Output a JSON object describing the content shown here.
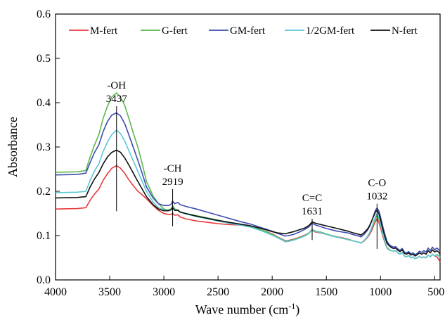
{
  "chart_data": {
    "type": "line",
    "title": "",
    "xlabel": "Wave number (cm",
    "xlabel_sup": "-1",
    "xlabel_end": ")",
    "ylabel": "Absorbance",
    "xlim": [
      4000,
      450
    ],
    "ylim": [
      0.0,
      0.6
    ],
    "x_reversed": true,
    "grid": false,
    "legend_position": "top",
    "xticks": [
      4000,
      3500,
      3000,
      2500,
      2000,
      1500,
      1000,
      500
    ],
    "yticks": [
      0.0,
      0.1,
      0.2,
      0.3,
      0.4,
      0.5,
      0.6
    ],
    "xtick_labels": [
      "4000",
      "3500",
      "3000",
      "2500",
      "2000",
      "1500",
      "1000",
      "500"
    ],
    "ytick_labels": [
      "0.0",
      "0.1",
      "0.2",
      "0.3",
      "0.4",
      "0.5",
      "0.6"
    ],
    "series": [
      {
        "name": "M-fert",
        "color": "#e8393b",
        "x": [
          4000,
          3800,
          3720,
          3680,
          3640,
          3600,
          3560,
          3520,
          3480,
          3437,
          3400,
          3360,
          3320,
          3280,
          3240,
          3200,
          3160,
          3100,
          3050,
          3000,
          2960,
          2935,
          2919,
          2900,
          2870,
          2850,
          2800,
          2700,
          2600,
          2500,
          2400,
          2300,
          2200,
          2100,
          2000,
          1950,
          1900,
          1880,
          1850,
          1800,
          1750,
          1700,
          1660,
          1631,
          1600,
          1550,
          1500,
          1450,
          1400,
          1350,
          1300,
          1250,
          1200,
          1180,
          1150,
          1120,
          1100,
          1080,
          1060,
          1045,
          1032,
          1015,
          1000,
          980,
          960,
          940,
          920,
          900,
          880,
          860,
          840,
          820,
          800,
          780,
          760,
          740,
          720,
          700,
          680,
          660,
          640,
          620,
          600,
          580,
          560,
          540,
          520,
          500,
          480,
          460,
          450
        ],
        "y": [
          0.16,
          0.161,
          0.163,
          0.18,
          0.194,
          0.205,
          0.225,
          0.24,
          0.252,
          0.258,
          0.252,
          0.24,
          0.225,
          0.212,
          0.2,
          0.192,
          0.183,
          0.168,
          0.157,
          0.15,
          0.148,
          0.148,
          0.15,
          0.146,
          0.147,
          0.142,
          0.138,
          0.133,
          0.13,
          0.127,
          0.125,
          0.124,
          0.12,
          0.113,
          0.104,
          0.097,
          0.091,
          0.088,
          0.089,
          0.092,
          0.096,
          0.101,
          0.106,
          0.112,
          0.108,
          0.106,
          0.103,
          0.1,
          0.097,
          0.095,
          0.092,
          0.088,
          0.085,
          0.083,
          0.088,
          0.096,
          0.103,
          0.112,
          0.125,
          0.133,
          0.138,
          0.13,
          0.118,
          0.1,
          0.085,
          0.072,
          0.068,
          0.066,
          0.065,
          0.066,
          0.061,
          0.058,
          0.062,
          0.054,
          0.052,
          0.055,
          0.05,
          0.052,
          0.048,
          0.05,
          0.053,
          0.05,
          0.052,
          0.05,
          0.056,
          0.052,
          0.058,
          0.054,
          0.052,
          0.045,
          0.04
        ]
      },
      {
        "name": "G-fert",
        "color": "#5cb84e",
        "x": [
          4000,
          3800,
          3720,
          3680,
          3640,
          3600,
          3560,
          3520,
          3480,
          3437,
          3400,
          3360,
          3320,
          3280,
          3240,
          3200,
          3160,
          3100,
          3050,
          3000,
          2960,
          2935,
          2919,
          2900,
          2870,
          2850,
          2800,
          2700,
          2600,
          2500,
          2400,
          2300,
          2200,
          2100,
          2000,
          1950,
          1900,
          1880,
          1850,
          1800,
          1750,
          1700,
          1660,
          1631,
          1600,
          1550,
          1500,
          1450,
          1400,
          1350,
          1300,
          1250,
          1200,
          1180,
          1150,
          1120,
          1100,
          1080,
          1060,
          1045,
          1032,
          1015,
          1000,
          980,
          960,
          940,
          920,
          900,
          880,
          860,
          840,
          820,
          800,
          780,
          760,
          740,
          720,
          700,
          680,
          660,
          640,
          620,
          600,
          580,
          560,
          540,
          520,
          500,
          480,
          460,
          450
        ],
        "y": [
          0.243,
          0.244,
          0.247,
          0.278,
          0.305,
          0.328,
          0.365,
          0.393,
          0.413,
          0.422,
          0.413,
          0.393,
          0.362,
          0.33,
          0.3,
          0.262,
          0.222,
          0.19,
          0.172,
          0.16,
          0.158,
          0.16,
          0.168,
          0.16,
          0.158,
          0.154,
          0.15,
          0.145,
          0.14,
          0.135,
          0.13,
          0.126,
          0.121,
          0.113,
          0.103,
          0.096,
          0.09,
          0.087,
          0.088,
          0.091,
          0.095,
          0.1,
          0.106,
          0.114,
          0.11,
          0.108,
          0.104,
          0.1,
          0.097,
          0.094,
          0.091,
          0.088,
          0.085,
          0.083,
          0.089,
          0.098,
          0.106,
          0.117,
          0.13,
          0.14,
          0.145,
          0.137,
          0.123,
          0.104,
          0.087,
          0.073,
          0.068,
          0.066,
          0.065,
          0.066,
          0.061,
          0.058,
          0.062,
          0.054,
          0.052,
          0.055,
          0.05,
          0.052,
          0.048,
          0.05,
          0.053,
          0.05,
          0.052,
          0.05,
          0.056,
          0.052,
          0.058,
          0.054,
          0.057,
          0.055,
          0.053
        ]
      },
      {
        "name": "GM-fert",
        "color": "#3d4cb0",
        "x": [
          4000,
          3800,
          3720,
          3680,
          3640,
          3600,
          3560,
          3520,
          3480,
          3437,
          3400,
          3360,
          3320,
          3280,
          3240,
          3200,
          3160,
          3100,
          3050,
          3000,
          2960,
          2935,
          2919,
          2900,
          2870,
          2850,
          2800,
          2700,
          2600,
          2500,
          2400,
          2300,
          2200,
          2100,
          2000,
          1950,
          1900,
          1880,
          1850,
          1800,
          1750,
          1700,
          1660,
          1631,
          1600,
          1550,
          1500,
          1450,
          1400,
          1350,
          1300,
          1250,
          1200,
          1180,
          1150,
          1120,
          1100,
          1080,
          1060,
          1045,
          1032,
          1015,
          1000,
          980,
          960,
          940,
          920,
          900,
          880,
          860,
          840,
          820,
          800,
          780,
          760,
          740,
          720,
          700,
          680,
          660,
          640,
          620,
          600,
          580,
          560,
          540,
          520,
          500,
          480,
          460,
          450
        ],
        "y": [
          0.237,
          0.238,
          0.241,
          0.265,
          0.288,
          0.305,
          0.335,
          0.358,
          0.372,
          0.377,
          0.37,
          0.352,
          0.325,
          0.298,
          0.27,
          0.24,
          0.21,
          0.185,
          0.172,
          0.168,
          0.168,
          0.17,
          0.178,
          0.172,
          0.175,
          0.17,
          0.166,
          0.16,
          0.153,
          0.146,
          0.139,
          0.132,
          0.126,
          0.118,
          0.11,
          0.105,
          0.101,
          0.099,
          0.1,
          0.103,
          0.108,
          0.114,
          0.12,
          0.128,
          0.124,
          0.12,
          0.116,
          0.113,
          0.11,
          0.108,
          0.106,
          0.102,
          0.099,
          0.097,
          0.103,
          0.112,
          0.121,
          0.133,
          0.148,
          0.158,
          0.162,
          0.156,
          0.142,
          0.122,
          0.103,
          0.087,
          0.08,
          0.076,
          0.074,
          0.075,
          0.07,
          0.067,
          0.071,
          0.063,
          0.061,
          0.064,
          0.059,
          0.061,
          0.057,
          0.06,
          0.065,
          0.062,
          0.066,
          0.063,
          0.072,
          0.066,
          0.074,
          0.068,
          0.072,
          0.068,
          0.064
        ]
      },
      {
        "name": "1/2GM-fert",
        "color": "#5bc8d6",
        "x": [
          4000,
          3800,
          3720,
          3680,
          3640,
          3600,
          3560,
          3520,
          3480,
          3437,
          3400,
          3360,
          3320,
          3280,
          3240,
          3200,
          3160,
          3100,
          3050,
          3000,
          2960,
          2935,
          2919,
          2900,
          2870,
          2850,
          2800,
          2700,
          2600,
          2500,
          2400,
          2300,
          2200,
          2100,
          2000,
          1950,
          1900,
          1880,
          1850,
          1800,
          1750,
          1700,
          1660,
          1631,
          1600,
          1550,
          1500,
          1450,
          1400,
          1350,
          1300,
          1250,
          1200,
          1180,
          1150,
          1120,
          1100,
          1080,
          1060,
          1045,
          1032,
          1015,
          1000,
          980,
          960,
          940,
          920,
          900,
          880,
          860,
          840,
          820,
          800,
          780,
          760,
          740,
          720,
          700,
          680,
          660,
          640,
          620,
          600,
          580,
          560,
          540,
          520,
          500,
          480,
          460,
          450
        ],
        "y": [
          0.197,
          0.198,
          0.2,
          0.225,
          0.246,
          0.262,
          0.29,
          0.312,
          0.328,
          0.338,
          0.33,
          0.313,
          0.29,
          0.268,
          0.245,
          0.222,
          0.2,
          0.176,
          0.163,
          0.158,
          0.157,
          0.158,
          0.165,
          0.158,
          0.157,
          0.153,
          0.149,
          0.143,
          0.138,
          0.133,
          0.128,
          0.124,
          0.119,
          0.111,
          0.101,
          0.095,
          0.089,
          0.086,
          0.087,
          0.09,
          0.094,
          0.099,
          0.105,
          0.113,
          0.109,
          0.107,
          0.103,
          0.099,
          0.096,
          0.094,
          0.091,
          0.088,
          0.085,
          0.083,
          0.089,
          0.098,
          0.107,
          0.119,
          0.133,
          0.144,
          0.15,
          0.141,
          0.126,
          0.106,
          0.088,
          0.074,
          0.069,
          0.066,
          0.065,
          0.066,
          0.061,
          0.058,
          0.062,
          0.054,
          0.052,
          0.055,
          0.05,
          0.052,
          0.048,
          0.05,
          0.053,
          0.05,
          0.052,
          0.05,
          0.056,
          0.052,
          0.058,
          0.054,
          0.056,
          0.053,
          0.05
        ]
      },
      {
        "name": "N-fert",
        "color": "#111111",
        "x": [
          4000,
          3800,
          3720,
          3680,
          3640,
          3600,
          3560,
          3520,
          3480,
          3437,
          3400,
          3360,
          3320,
          3280,
          3240,
          3200,
          3160,
          3100,
          3050,
          3000,
          2960,
          2935,
          2919,
          2900,
          2870,
          2850,
          2800,
          2700,
          2600,
          2500,
          2400,
          2300,
          2200,
          2100,
          2000,
          1950,
          1900,
          1880,
          1850,
          1800,
          1750,
          1700,
          1660,
          1631,
          1600,
          1550,
          1500,
          1450,
          1400,
          1350,
          1300,
          1250,
          1200,
          1180,
          1150,
          1120,
          1100,
          1080,
          1060,
          1045,
          1032,
          1015,
          1000,
          980,
          960,
          940,
          920,
          900,
          880,
          860,
          840,
          820,
          800,
          780,
          760,
          740,
          720,
          700,
          680,
          660,
          640,
          620,
          600,
          580,
          560,
          540,
          520,
          500,
          480,
          460,
          450
        ],
        "y": [
          0.185,
          0.186,
          0.188,
          0.21,
          0.228,
          0.242,
          0.262,
          0.278,
          0.288,
          0.293,
          0.288,
          0.275,
          0.258,
          0.24,
          0.222,
          0.205,
          0.188,
          0.17,
          0.16,
          0.156,
          0.156,
          0.158,
          0.163,
          0.157,
          0.157,
          0.153,
          0.15,
          0.144,
          0.139,
          0.134,
          0.13,
          0.126,
          0.122,
          0.116,
          0.109,
          0.106,
          0.105,
          0.104,
          0.106,
          0.109,
          0.113,
          0.117,
          0.123,
          0.131,
          0.128,
          0.125,
          0.122,
          0.119,
          0.116,
          0.113,
          0.11,
          0.106,
          0.103,
          0.101,
          0.107,
          0.115,
          0.123,
          0.134,
          0.146,
          0.154,
          0.157,
          0.15,
          0.136,
          0.116,
          0.098,
          0.083,
          0.077,
          0.073,
          0.071,
          0.072,
          0.067,
          0.064,
          0.068,
          0.06,
          0.058,
          0.061,
          0.056,
          0.058,
          0.054,
          0.057,
          0.061,
          0.058,
          0.061,
          0.058,
          0.066,
          0.061,
          0.068,
          0.063,
          0.066,
          0.062,
          0.058
        ]
      }
    ],
    "annotations": [
      {
        "group": "-OH",
        "wavenumber": "3437",
        "x": 3437,
        "y_top": 0.392,
        "y_bottom": 0.155
      },
      {
        "group": "-CH",
        "wavenumber": "2919",
        "x": 2919,
        "y_top": 0.205,
        "y_bottom": 0.121
      },
      {
        "group": "C=C",
        "wavenumber": "1631",
        "x": 1631,
        "y_top": 0.138,
        "y_bottom": 0.09
      },
      {
        "group": "C-O",
        "wavenumber": "1032",
        "x": 1032,
        "y_top": 0.172,
        "y_bottom": 0.07
      }
    ]
  }
}
